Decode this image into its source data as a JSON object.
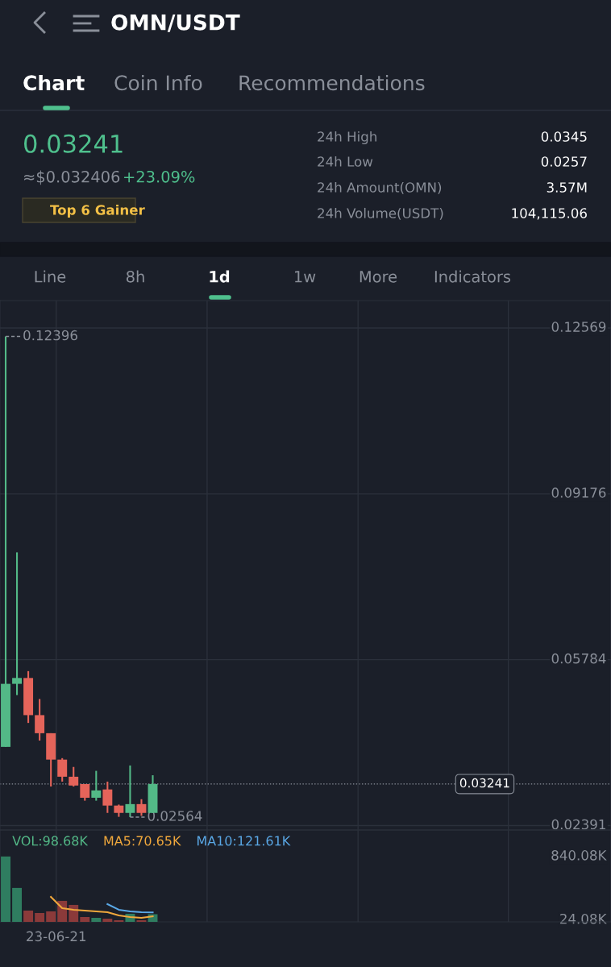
{
  "chart_data": [
    {
      "type": "candlestick",
      "title": "OMN/USDT",
      "categories": [
        null,
        null,
        null,
        null,
        null,
        null,
        null,
        null,
        null,
        null,
        null,
        null,
        null,
        null,
        null,
        null,
        null,
        null,
        null,
        null,
        null,
        null,
        null,
        null,
        null,
        null,
        null,
        null,
        null,
        null,
        null,
        null,
        null,
        null,
        null,
        null,
        null,
        null,
        null,
        null,
        null,
        null,
        null,
        null,
        null,
        null,
        null,
        null,
        null,
        null,
        null,
        null,
        null,
        null
      ],
      "ohlc": [
        [
          0.04,
          0.12396,
          0.04,
          0.0529
        ],
        [
          0.0529,
          0.0798,
          0.0506,
          0.0541
        ],
        [
          0.0541,
          0.0555,
          0.0449,
          0.0465
        ],
        [
          0.0465,
          0.0498,
          0.0413,
          0.0428
        ],
        [
          0.0428,
          0.0428,
          0.0319,
          0.0374
        ],
        [
          0.0374,
          0.0377,
          0.0329,
          0.0339
        ],
        [
          0.0339,
          0.0359,
          0.0319,
          0.0321
        ],
        [
          0.0324,
          0.0324,
          0.029,
          0.0296
        ],
        [
          0.0296,
          0.0351,
          0.029,
          0.0311
        ],
        [
          0.0313,
          0.0329,
          0.0265,
          0.028
        ],
        [
          0.028,
          0.0282,
          0.0257,
          0.0265
        ],
        [
          0.0265,
          0.0362,
          0.02564,
          0.0283
        ],
        [
          0.0283,
          0.0293,
          0.0259,
          0.0265
        ],
        [
          0.0265,
          0.0342,
          0.0265,
          0.03241
        ],
        null,
        null,
        null,
        null,
        null,
        null,
        null,
        null,
        null,
        null,
        null,
        null,
        null,
        null,
        null,
        null,
        null,
        null,
        null,
        null,
        null,
        null,
        null,
        null,
        null,
        null,
        null,
        null,
        null,
        null,
        null,
        null,
        null,
        null,
        null,
        null,
        null,
        null,
        null,
        null
      ],
      "colors": [
        "#53b987",
        "#53b987",
        "#e5645a",
        "#e5645a",
        "#e5645a",
        "#e5645a",
        "#e5645a",
        "#e5645a",
        "#53b987",
        "#e5645a",
        "#e5645a",
        "#53b987",
        "#e5645a",
        "#53b987",
        null,
        null,
        null,
        null,
        null,
        null,
        null,
        null,
        null,
        null,
        null,
        null,
        null,
        null,
        null,
        null,
        null,
        null,
        null,
        null,
        null,
        null,
        null,
        null,
        null,
        null,
        null,
        null,
        null,
        null,
        null,
        null,
        null,
        null,
        null,
        null,
        null,
        null,
        null,
        null
      ],
      "ylim": [
        0.023,
        0.1313
      ],
      "yticks": [
        0.12569,
        0.09176,
        0.05784,
        0.02391
      ],
      "tick_labels": "y",
      "grid": "y",
      "ref_lines": [
        {
          "axis": "y",
          "value": 0.03241,
          "label": "0.03241",
          "color": "#8a8f99",
          "line_style": "dotted"
        }
      ],
      "annotations": [
        "Chart",
        "Coin Info",
        "Recommendations",
        "0.03241",
        "≈$0.032406",
        "+23.09%",
        "Top 6 Gainer",
        "24h High",
        "0.0345",
        "24h Low",
        "0.0257",
        "24h Amount(OMN)",
        "3.57M",
        "24h Volume(USDT)",
        "104,115.06",
        "Line",
        "8h",
        "1d",
        "1w",
        "More",
        "Indicators",
        "0.12396",
        "0.02564"
      ]
    },
    {
      "type": "bar",
      "categories": [
        null,
        null,
        null,
        null,
        null,
        null,
        null,
        null,
        null,
        null,
        null,
        null,
        null,
        null,
        null,
        null,
        null,
        null,
        null,
        null,
        null,
        null,
        null,
        null,
        null,
        null,
        null,
        null,
        null,
        null,
        null,
        null,
        null,
        null,
        null,
        null,
        null,
        null,
        null,
        null,
        null,
        null,
        null,
        null,
        null,
        null,
        null,
        null,
        null,
        null,
        null,
        null,
        null,
        null
      ],
      "series": [
        {
          "name": "VOL:98.68K",
          "type": "bar",
          "color": "#53b987",
          "colors": [
            "#2f7d60",
            "#2f7d60",
            "#8b3a3a",
            "#8b3a3a",
            "#8b3a3a",
            "#8b3a3a",
            "#8b3a3a",
            "#8b3a3a",
            "#2f7d60",
            "#8b3a3a",
            "#8b3a3a",
            "#2f7d60",
            "#8b3a3a",
            "#2f7d60",
            null,
            null,
            null,
            null,
            null,
            null,
            null,
            null,
            null,
            null,
            null,
            null,
            null,
            null,
            null,
            null,
            null,
            null,
            null,
            null,
            null,
            null,
            null,
            null,
            null,
            null,
            null,
            null,
            null,
            null,
            null,
            null,
            null,
            null,
            null,
            null,
            null,
            null,
            null,
            null
          ],
          "values": [
            840,
            436,
            145,
            114,
            135,
            270,
            218,
            62,
            52,
            41,
            21,
            104,
            21,
            98.68,
            null,
            null,
            null,
            null,
            null,
            null,
            null,
            null,
            null,
            null,
            null,
            null,
            null,
            null,
            null,
            null,
            null,
            null,
            null,
            null,
            null,
            null,
            null,
            null,
            null,
            null,
            null,
            null,
            null,
            null,
            null,
            null,
            null,
            null,
            null,
            null,
            null,
            null,
            null,
            null
          ]
        },
        {
          "name": "MA5:70.65K",
          "type": "line",
          "color": "#f0a83c",
          "values": [
            null,
            null,
            null,
            null,
            321,
            176,
            156,
            145,
            135,
            124,
            83,
            62,
            52,
            70.65,
            null,
            null,
            null,
            null,
            null,
            null,
            null,
            null,
            null,
            null,
            null,
            null,
            null,
            null,
            null,
            null,
            null,
            null,
            null,
            null,
            null,
            null,
            null,
            null,
            null,
            null,
            null,
            null,
            null,
            null,
            null,
            null,
            null,
            null,
            null,
            null,
            null,
            null,
            null,
            null
          ]
        },
        {
          "name": "MA10:121.61K",
          "type": "line",
          "color": "#5aa8e6",
          "values": [
            null,
            null,
            null,
            null,
            null,
            null,
            null,
            null,
            null,
            228,
            156,
            135,
            125,
            121.61,
            null,
            null,
            null,
            null,
            null,
            null,
            null,
            null,
            null,
            null,
            null,
            null,
            null,
            null,
            null,
            null,
            null,
            null,
            null,
            null,
            null,
            null,
            null,
            null,
            null,
            null,
            null,
            null,
            null,
            null,
            null,
            null,
            null,
            null,
            null,
            null,
            null,
            null,
            null,
            null
          ]
        }
      ],
      "ylim": [
        0,
        1180
      ],
      "yticks": [
        {
          "value": 840.08,
          "label": "840.08K"
        },
        {
          "value": 24.08,
          "label": "24.08K"
        }
      ],
      "tick_labels": "y",
      "annotations": [
        "23-06-21"
      ]
    }
  ]
}
